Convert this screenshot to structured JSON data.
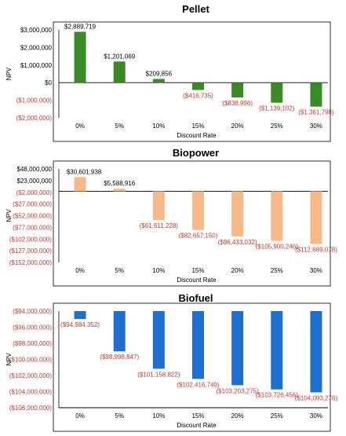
{
  "colors": {
    "pellet": "#3a8a26",
    "biopower": "#f7b987",
    "biofuel": "#1f6fd1",
    "negative_label": "#c0392b",
    "positive_label": "#000000",
    "frame": "#000000"
  },
  "chart_data": [
    {
      "type": "bar",
      "title": "Pellet",
      "xlabel": "Discount Rate",
      "ylabel": "NPV",
      "categories": [
        "0%",
        "5%",
        "10%",
        "15%",
        "20%",
        "25%",
        "30%"
      ],
      "values": [
        2889719,
        1201069,
        209856,
        -416735,
        -838996,
        -1139102,
        -1361798
      ],
      "data_labels": [
        "$2,889,719",
        "$1,201,069",
        "$209,856",
        "($416,735)",
        "($838,996)",
        "($1,139,102)",
        "($1,361,798)"
      ],
      "yticks": [
        3000000,
        2000000,
        1000000,
        0,
        -1000000,
        -2000000
      ],
      "ytick_labels": [
        "$3,000,000",
        "$2,000,000",
        "$1,000,000",
        "$0",
        "($1,000,000)",
        "($2,000,000)"
      ],
      "ylim": [
        -2000000,
        3000000
      ],
      "grid": false,
      "legend": "none"
    },
    {
      "type": "bar",
      "title": "Biopower",
      "xlabel": "Discount Rate",
      "ylabel": "NPV",
      "categories": [
        "0%",
        "5%",
        "10%",
        "15%",
        "20%",
        "25%",
        "30%"
      ],
      "values": [
        30601938,
        5588916,
        -61611228,
        -82657150,
        -96433032,
        -105900246,
        -112689078
      ],
      "data_labels": [
        "$30,601,938",
        "$5,588,916",
        "($61,611,228)",
        "($82,657,150)",
        "($96,433,032)",
        "($105,900,246)",
        "($112,689,078)"
      ],
      "yticks": [
        48000000,
        23000000,
        -2000000,
        -27000000,
        -52000000,
        -77000000,
        -102000000,
        -127000000,
        -152000000
      ],
      "ytick_labels": [
        "$48,000,000",
        "$23,000,000",
        "($2,000,000)",
        "($27,000,000)",
        "($52,000,000)",
        "($77,000,000)",
        "($102,000,000)",
        "($127,000,000)",
        "($152,000,000)"
      ],
      "ylim": [
        -152000000,
        48000000
      ],
      "grid": false,
      "legend": "none"
    },
    {
      "type": "bar",
      "title": "Biofuel",
      "xlabel": "Discount Rate",
      "ylabel": "NPV",
      "categories": [
        "0%",
        "5%",
        "10%",
        "15%",
        "20%",
        "25%",
        "30%"
      ],
      "values": [
        -94984352,
        -98998847,
        -101158822,
        -102416749,
        -103203275,
        -103726456,
        -104093276
      ],
      "data_labels": [
        "($94,984,352)",
        "($98,998,847)",
        "($101,158,822)",
        "($102,416,749)",
        "($103,203,275)",
        "($103,726,456)",
        "($104,093,276)"
      ],
      "yticks": [
        -94000000,
        -96000000,
        -98000000,
        -100000000,
        -102000000,
        -104000000,
        -106000000
      ],
      "ytick_labels": [
        "($94,000,000)",
        "($96,000,000)",
        "($98,000,000)",
        "($100,000,000)",
        "($102,000,000)",
        "($104,000,000)",
        "($106,000,000)"
      ],
      "ylim": [
        -106000000,
        -94000000
      ],
      "grid": false,
      "legend": "none"
    }
  ]
}
